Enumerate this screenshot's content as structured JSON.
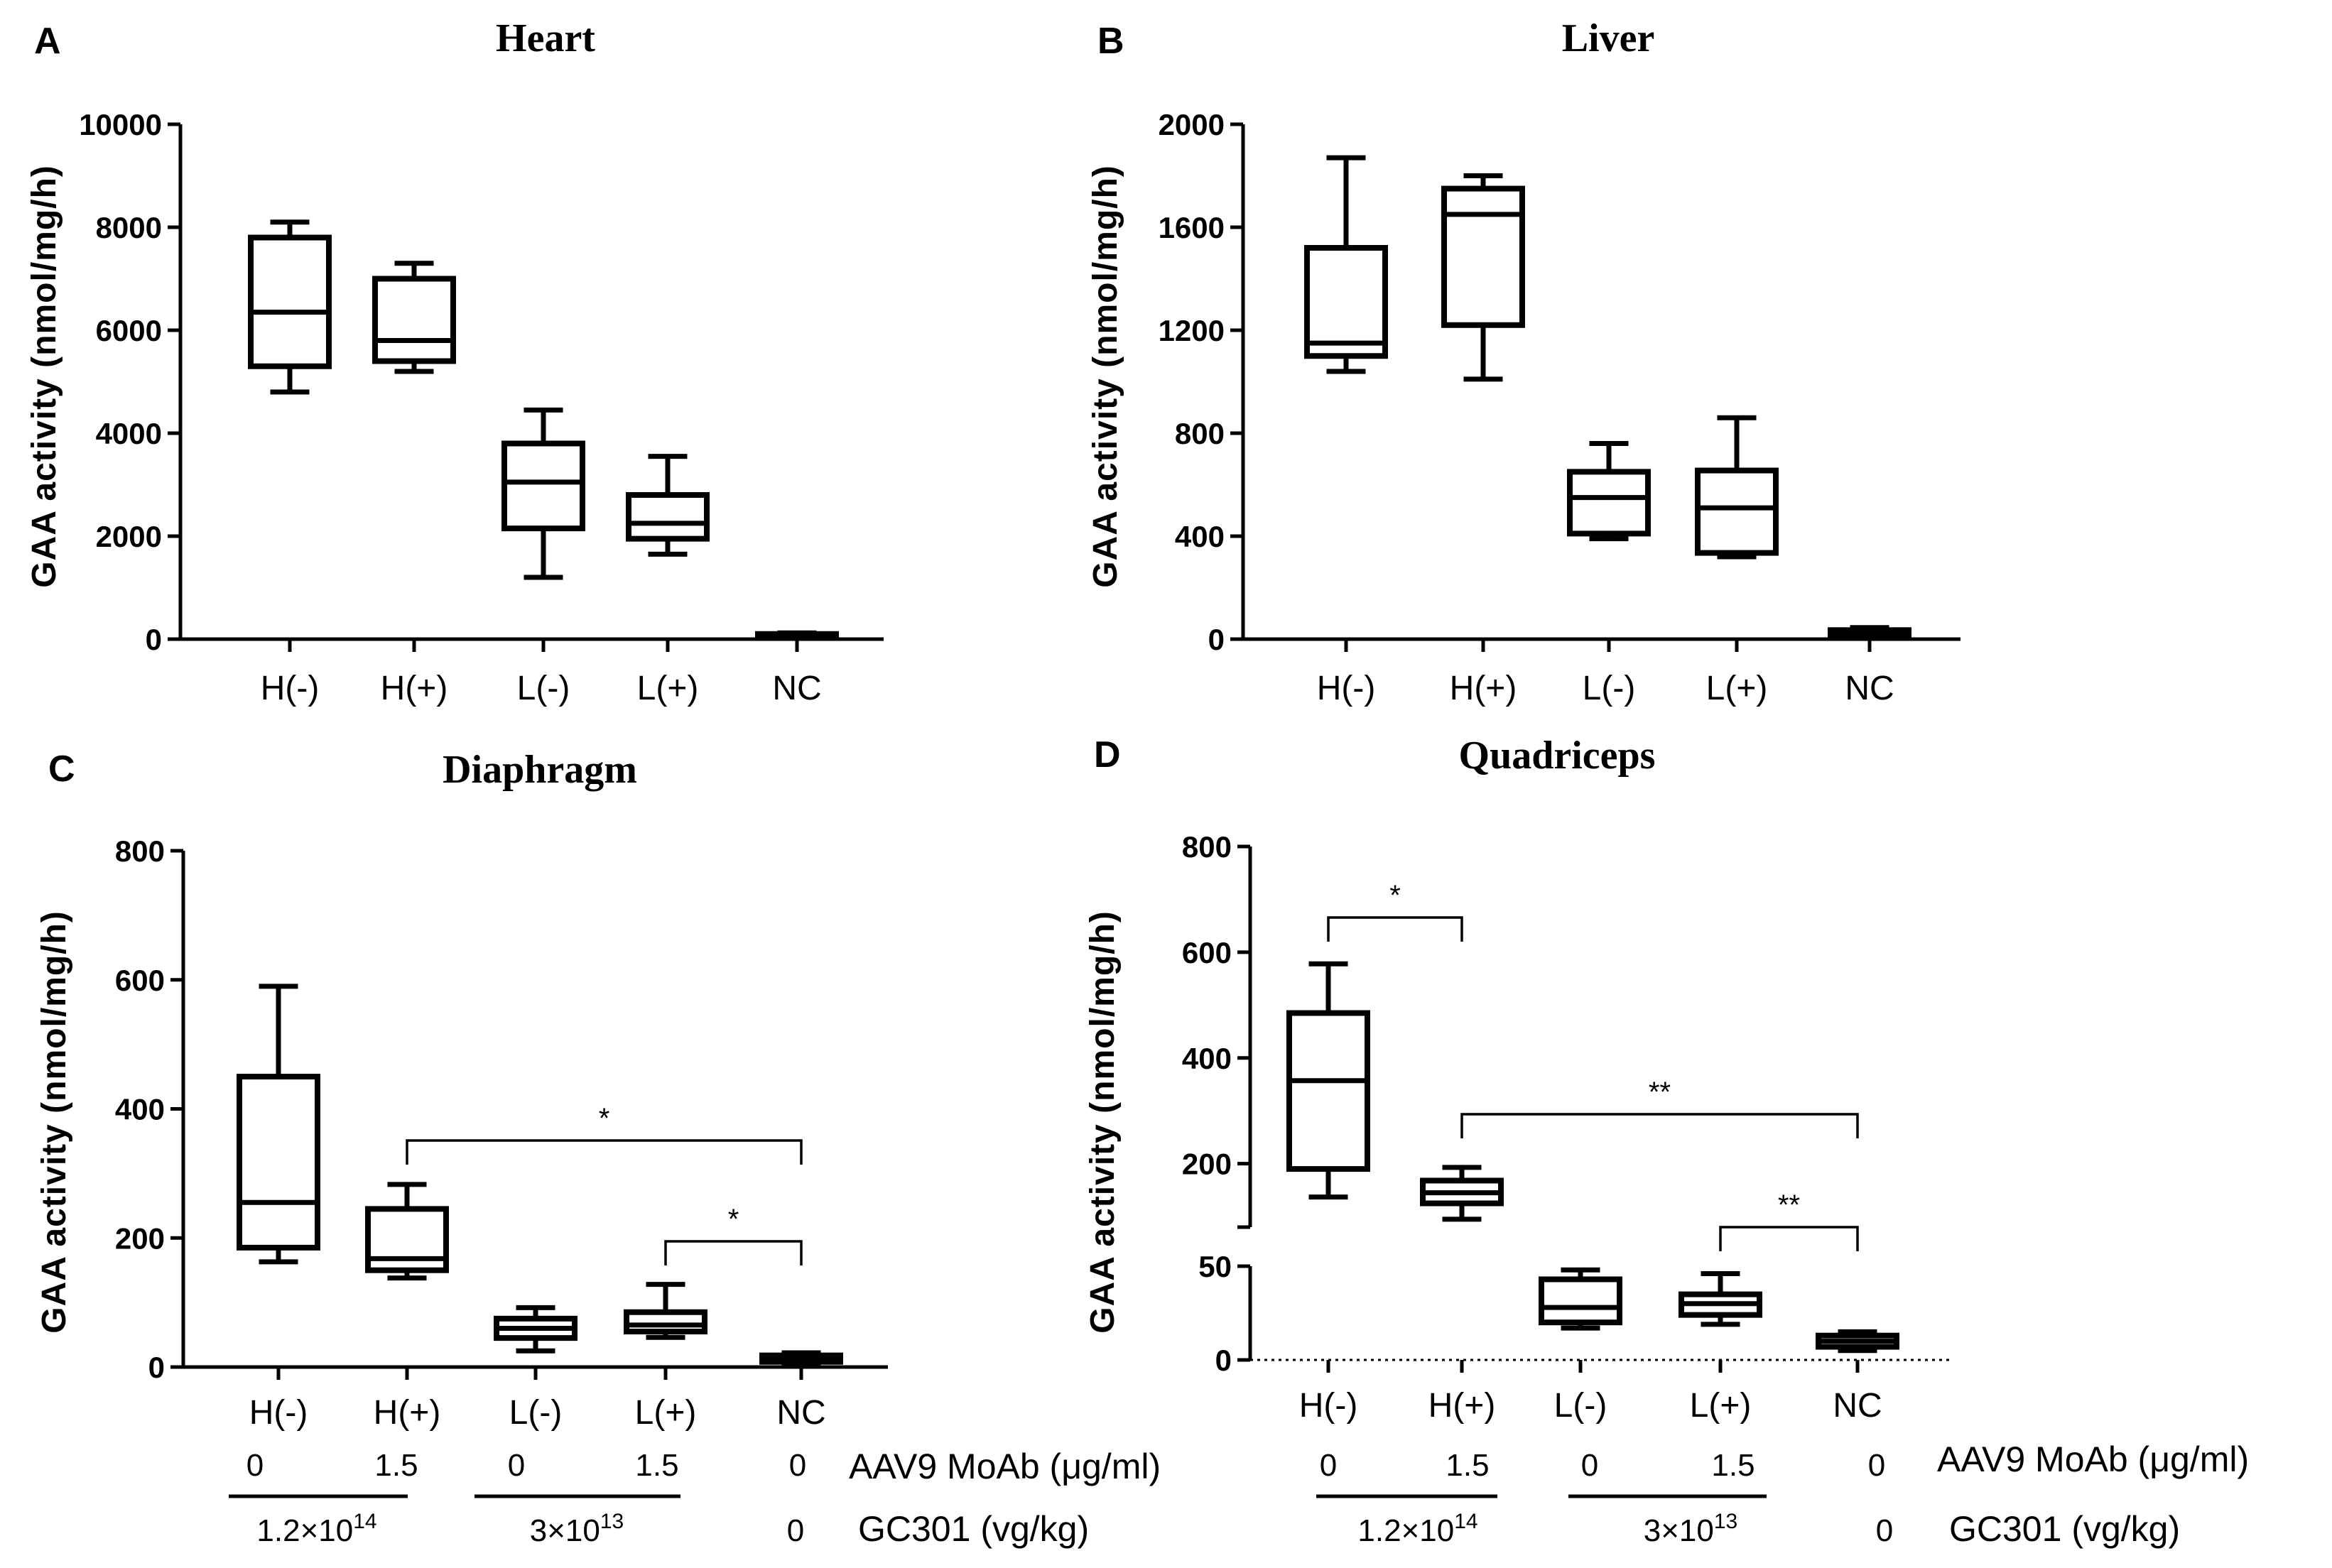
{
  "chart_data": [
    {
      "panel": "A",
      "type": "boxplot",
      "title": "Heart",
      "ylabel": "GAA activity (nmol/mg/h)",
      "ylim": [
        0,
        10000
      ],
      "yticks": [
        "0",
        "2000",
        "4000",
        "6000",
        "8000",
        "10000"
      ],
      "categories": [
        "H(-)",
        "H(+)",
        "L(-)",
        "L(+)",
        "NC"
      ],
      "boxes": [
        {
          "category": "H(-)",
          "min": 4800,
          "q1": 5300,
          "median": 6350,
          "q3": 7800,
          "max": 8100
        },
        {
          "category": "H(+)",
          "min": 5200,
          "q1": 5400,
          "median": 5800,
          "q3": 7000,
          "max": 7300
        },
        {
          "category": "L(-)",
          "min": 1200,
          "q1": 2150,
          "median": 3050,
          "q3": 3800,
          "max": 4450
        },
        {
          "category": "L(+)",
          "min": 1650,
          "q1": 1950,
          "median": 2250,
          "q3": 2800,
          "max": 3550
        },
        {
          "category": "NC",
          "min": 40,
          "q1": 60,
          "median": 80,
          "q3": 100,
          "max": 120
        }
      ]
    },
    {
      "panel": "B",
      "type": "boxplot",
      "title": "Liver",
      "ylabel": "GAA activity (nmol/mg/h)",
      "ylim": [
        0,
        2000
      ],
      "yticks": [
        "0",
        "400",
        "800",
        "1200",
        "1600",
        "2000"
      ],
      "categories": [
        "H(-)",
        "H(+)",
        "L(-)",
        "L(+)",
        "NC"
      ],
      "boxes": [
        {
          "category": "H(-)",
          "min": 1040,
          "q1": 1100,
          "median": 1150,
          "q3": 1520,
          "max": 1870
        },
        {
          "category": "H(+)",
          "min": 1010,
          "q1": 1220,
          "median": 1650,
          "q3": 1750,
          "max": 1800
        },
        {
          "category": "L(-)",
          "min": 390,
          "q1": 410,
          "median": 550,
          "q3": 650,
          "max": 760
        },
        {
          "category": "L(+)",
          "min": 320,
          "q1": 335,
          "median": 510,
          "q3": 655,
          "max": 860
        },
        {
          "category": "NC",
          "min": 10,
          "q1": 15,
          "median": 25,
          "q3": 35,
          "max": 45
        }
      ]
    },
    {
      "panel": "C",
      "type": "boxplot",
      "title": "Diaphragm",
      "ylabel": "GAA activity (nmol/mg/h)",
      "ylim": [
        0,
        800
      ],
      "yticks": [
        "0",
        "200",
        "400",
        "600",
        "800"
      ],
      "categories": [
        "H(-)",
        "H(+)",
        "L(-)",
        "L(+)",
        "NC"
      ],
      "boxes": [
        {
          "category": "H(-)",
          "min": 163,
          "q1": 185,
          "median": 255,
          "q3": 450,
          "max": 590
        },
        {
          "category": "H(+)",
          "min": 138,
          "q1": 150,
          "median": 168,
          "q3": 245,
          "max": 283
        },
        {
          "category": "L(-)",
          "min": 25,
          "q1": 45,
          "median": 60,
          "q3": 75,
          "max": 92
        },
        {
          "category": "L(+)",
          "min": 46,
          "q1": 55,
          "median": 65,
          "q3": 85,
          "max": 128
        },
        {
          "category": "NC",
          "min": 5,
          "q1": 8,
          "median": 12,
          "q3": 18,
          "max": 22
        }
      ],
      "significance": [
        {
          "from": "H(+)",
          "to": "NC",
          "label": "*"
        },
        {
          "from": "L(+)",
          "to": "NC",
          "label": "*"
        }
      ]
    },
    {
      "panel": "D",
      "type": "boxplot",
      "title": "Quadriceps",
      "ylabel": "GAA activity (nmol/mg/h)",
      "y_axis_break": true,
      "ylim_lower": [
        0,
        50
      ],
      "ylim_upper": [
        80,
        800
      ],
      "yticks": [
        "0",
        "50",
        "200",
        "400",
        "600",
        "800"
      ],
      "categories": [
        "H(-)",
        "H(+)",
        "L(-)",
        "L(+)",
        "NC"
      ],
      "boxes": [
        {
          "category": "H(-)",
          "min": 137,
          "q1": 190,
          "median": 357,
          "q3": 485,
          "max": 578
        },
        {
          "category": "H(+)",
          "min": 95,
          "q1": 125,
          "median": 145,
          "q3": 168,
          "max": 193
        },
        {
          "category": "L(-)",
          "min": 17,
          "q1": 20,
          "median": 28,
          "q3": 43,
          "max": 48
        },
        {
          "category": "L(+)",
          "min": 19,
          "q1": 24,
          "median": 30,
          "q3": 35,
          "max": 46
        },
        {
          "category": "NC",
          "min": 5,
          "q1": 7,
          "median": 10,
          "q3": 13,
          "max": 15
        }
      ],
      "significance": [
        {
          "from": "H(-)",
          "to": "H(+)",
          "label": "*"
        },
        {
          "from": "H(+)",
          "to": "NC",
          "label": "**"
        },
        {
          "from": "L(+)",
          "to": "NC",
          "label": "**"
        }
      ]
    }
  ],
  "footer": {
    "antibody_label": "AAV9 MoAb (μg/ml)",
    "antibody_values": [
      "0",
      "1.5",
      "0",
      "1.5",
      "0"
    ],
    "dose_label": "GC301 (vg/kg)",
    "dose_high": "1.2×10",
    "dose_high_exp": "14",
    "dose_low": "3×10",
    "dose_low_exp": "13",
    "dose_nc": "0"
  }
}
